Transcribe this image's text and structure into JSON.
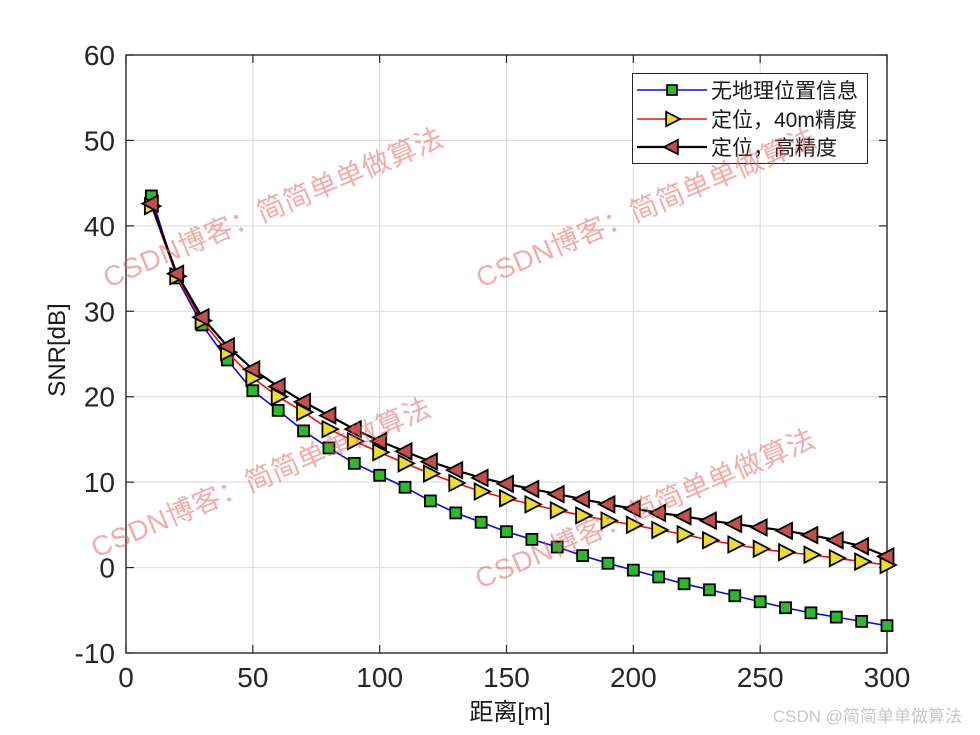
{
  "chart_data": {
    "type": "line",
    "title": "",
    "xlabel": "距离[m]",
    "ylabel": "SNR[dB]",
    "xlim": [
      0,
      300
    ],
    "ylim": [
      -10,
      60
    ],
    "x_ticks": [
      0,
      50,
      100,
      150,
      200,
      250,
      300
    ],
    "y_ticks": [
      -10,
      0,
      10,
      20,
      30,
      40,
      50,
      60
    ],
    "grid": true,
    "grid_color": "#d9d9d9",
    "axis_color": "#262626",
    "legend_position": "top-right",
    "x": [
      10,
      20,
      30,
      40,
      50,
      60,
      70,
      80,
      90,
      100,
      110,
      120,
      130,
      140,
      150,
      160,
      170,
      180,
      190,
      200,
      210,
      220,
      230,
      240,
      250,
      260,
      270,
      280,
      290,
      300
    ],
    "series": [
      {
        "name": "无地理位置信息",
        "line_color": "#0a0ae6",
        "marker": "square",
        "marker_fill": "#2db82d",
        "line_width": 1.6,
        "values": [
          43.5,
          33.9,
          28.4,
          24.3,
          20.7,
          18.4,
          16.0,
          14.0,
          12.2,
          10.8,
          9.4,
          7.8,
          6.4,
          5.3,
          4.2,
          3.3,
          2.4,
          1.4,
          0.5,
          -0.3,
          -1.1,
          -1.9,
          -2.6,
          -3.3,
          -4.0,
          -4.7,
          -5.3,
          -5.8,
          -6.3,
          -6.8
        ]
      },
      {
        "name": "定位，40m精度",
        "line_color": "#ee1111",
        "marker": "triangle-right",
        "marker_fill": "#ecdc30",
        "line_width": 1.6,
        "values": [
          42.3,
          34.1,
          28.9,
          25.2,
          22.2,
          20.0,
          18.2,
          16.2,
          14.8,
          13.5,
          12.2,
          11.0,
          9.9,
          8.9,
          8.1,
          7.4,
          6.7,
          6.1,
          5.5,
          5.0,
          4.4,
          3.9,
          3.2,
          2.7,
          2.2,
          1.8,
          1.5,
          1.1,
          0.7,
          0.3
        ]
      },
      {
        "name": "定位，高精度",
        "line_color": "#000000",
        "marker": "triangle-left",
        "marker_fill": "#c0504d",
        "line_width": 2.2,
        "values": [
          42.6,
          34.4,
          29.3,
          25.9,
          23.2,
          21.2,
          19.4,
          17.8,
          16.2,
          14.8,
          13.6,
          12.4,
          11.4,
          10.5,
          9.8,
          9.2,
          8.6,
          8.0,
          7.4,
          6.9,
          6.4,
          6.0,
          5.5,
          5.1,
          4.7,
          4.3,
          3.8,
          3.2,
          2.5,
          1.3
        ]
      }
    ]
  },
  "watermark": {
    "text": "CSDN博客：简简单单做算法",
    "color": "rgba(231,89,89,0.5)"
  },
  "credit": {
    "text": "CSDN @简简单单做算法"
  }
}
